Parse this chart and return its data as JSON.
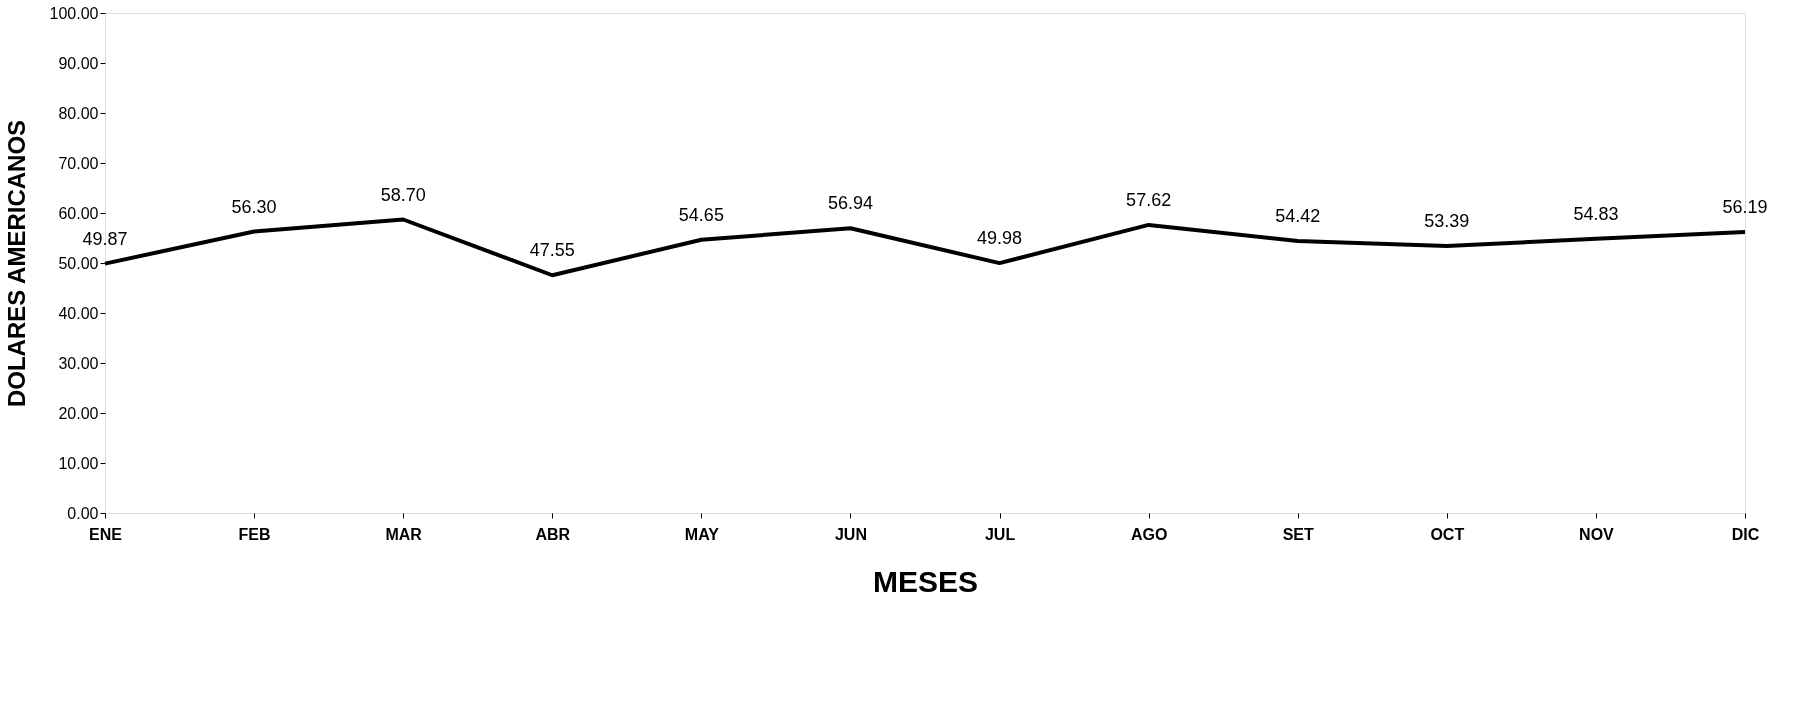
{
  "chart_data": {
    "type": "line",
    "xlabel": "MESES",
    "ylabel": "DOLARES  AMERICANOS",
    "categories": [
      "ENE",
      "FEB",
      "MAR",
      "ABR",
      "MAY",
      "JUN",
      "JUL",
      "AGO",
      "SET",
      "OCT",
      "NOV",
      "DIC"
    ],
    "series": [
      {
        "color": "#000000",
        "values": [
          49.87,
          56.3,
          58.7,
          47.55,
          54.65,
          56.94,
          49.98,
          57.62,
          54.42,
          53.39,
          54.83,
          56.19
        ]
      }
    ],
    "ylim": [
      0,
      100
    ],
    "yticks": [
      {
        "value": 0,
        "label": "0.00"
      },
      {
        "value": 10,
        "label": "10.00"
      },
      {
        "value": 20,
        "label": "20.00"
      },
      {
        "value": 30,
        "label": "30.00"
      },
      {
        "value": 40,
        "label": "40.00"
      },
      {
        "value": 50,
        "label": "50.00"
      },
      {
        "value": 60,
        "label": "60.00"
      },
      {
        "value": 70,
        "label": "70.00"
      },
      {
        "value": 80,
        "label": "80.00"
      },
      {
        "value": 90,
        "label": "90.00"
      },
      {
        "value": 100,
        "label": "100.00"
      }
    ],
    "value_labels": [
      "49.87",
      "56.30",
      "58.70",
      "47.55",
      "54.65",
      "56.94",
      "49.98",
      "57.62",
      "54.42",
      "53.39",
      "54.83",
      "56.19"
    ],
    "grid": false,
    "marker": "none",
    "line_style": "solid"
  }
}
